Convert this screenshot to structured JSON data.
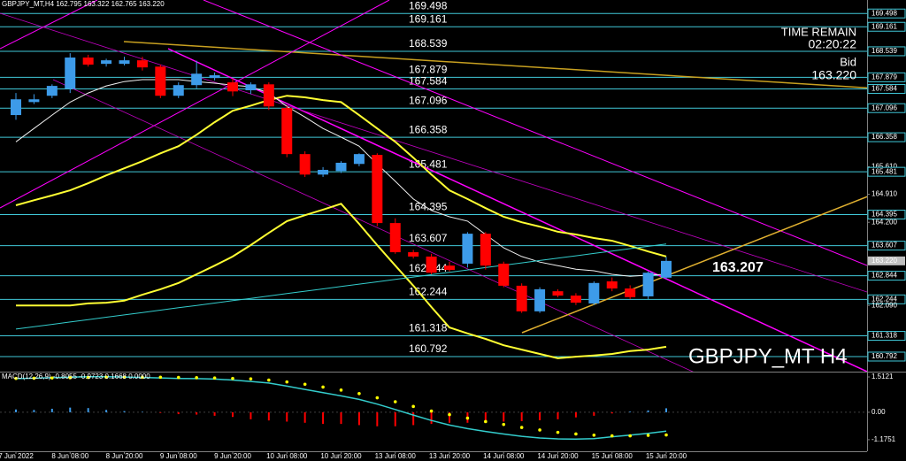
{
  "chart_data": [
    {
      "type": "candlestick",
      "title": "GBPJPY_MT,H4 162.795 163.322 162.765 163.220",
      "categories": [
        "7 Jun 2022",
        null,
        null,
        "8 Jun 08:00",
        null,
        null,
        "8 Jun 20:00",
        null,
        null,
        "9 Jun 08:00",
        null,
        null,
        "9 Jun 20:00",
        null,
        null,
        "10 Jun 08:00",
        null,
        null,
        "10 Jun 20:00",
        null,
        null,
        "13 Jun 08:00",
        null,
        null,
        "13 Jun 20:00",
        null,
        null,
        "14 Jun 08:00",
        null,
        null,
        "14 Jun 20:00",
        null,
        null,
        "15 Jun 08:00",
        null,
        null,
        "15 Jun 20:00"
      ],
      "ohlc": [
        [
          166.92,
          167.48,
          166.8,
          167.32
        ],
        [
          167.25,
          167.45,
          167.2,
          167.32
        ],
        [
          167.41,
          167.7,
          167.35,
          167.66
        ],
        [
          167.59,
          168.49,
          167.48,
          168.38
        ],
        [
          168.38,
          168.45,
          168.15,
          168.2
        ],
        [
          168.22,
          168.35,
          168.15,
          168.31
        ],
        [
          168.22,
          168.4,
          168.18,
          168.31
        ],
        [
          168.31,
          168.4,
          168.05,
          168.13
        ],
        [
          168.15,
          168.2,
          167.35,
          167.41
        ],
        [
          167.41,
          167.75,
          167.35,
          167.68
        ],
        [
          167.68,
          168.3,
          167.6,
          167.97
        ],
        [
          167.86,
          168.0,
          167.8,
          167.93
        ],
        [
          167.75,
          167.85,
          167.4,
          167.52
        ],
        [
          167.55,
          167.75,
          167.45,
          167.7
        ],
        [
          167.7,
          167.75,
          167.05,
          167.14
        ],
        [
          167.1,
          167.15,
          165.85,
          165.93
        ],
        [
          165.93,
          166.0,
          165.35,
          165.41
        ],
        [
          165.41,
          165.6,
          165.35,
          165.53
        ],
        [
          165.5,
          165.75,
          165.45,
          165.71
        ],
        [
          165.68,
          165.95,
          165.62,
          165.93
        ],
        [
          165.91,
          165.95,
          164.1,
          164.18
        ],
        [
          164.18,
          164.3,
          163.4,
          163.44
        ],
        [
          163.44,
          163.5,
          163.28,
          163.33
        ],
        [
          163.33,
          163.4,
          162.88,
          162.92
        ],
        [
          163.1,
          163.2,
          162.95,
          162.99
        ],
        [
          163.15,
          163.95,
          163.05,
          163.91
        ],
        [
          163.91,
          163.95,
          163.0,
          163.1
        ],
        [
          163.15,
          163.2,
          162.55,
          162.59
        ],
        [
          162.59,
          162.65,
          161.9,
          161.94
        ],
        [
          161.94,
          162.55,
          161.9,
          162.5
        ],
        [
          162.45,
          162.5,
          162.3,
          162.34
        ],
        [
          162.34,
          162.4,
          162.1,
          162.16
        ],
        [
          162.14,
          162.7,
          162.1,
          162.66
        ],
        [
          162.7,
          162.8,
          162.45,
          162.52
        ],
        [
          162.52,
          162.6,
          162.25,
          162.3
        ],
        [
          162.32,
          162.95,
          162.25,
          162.92
        ],
        [
          162.795,
          163.322,
          162.765,
          163.22
        ]
      ],
      "up_color": "#3d9be9",
      "down_color": "#ff0000",
      "lines": [
        {
          "color": "#ffff33",
          "values": [
            164.63,
            164.76,
            164.88,
            165.01,
            165.19,
            165.39,
            165.57,
            165.75,
            165.95,
            166.13,
            166.42,
            166.74,
            167.03,
            167.16,
            167.3,
            167.41,
            167.37,
            167.3,
            167.25,
            166.92,
            166.58,
            166.24,
            165.84,
            165.41,
            165.01,
            164.79,
            164.56,
            164.34,
            164.2,
            164.09,
            163.96,
            163.89,
            163.8,
            163.73,
            163.6,
            163.46,
            163.33
          ]
        },
        {
          "color": "#ffff33",
          "values": [
            162.09,
            162.09,
            162.09,
            162.09,
            162.14,
            162.16,
            162.21,
            162.36,
            162.5,
            162.66,
            162.88,
            163.1,
            163.33,
            163.62,
            163.93,
            164.23,
            164.38,
            164.52,
            164.67,
            164.16,
            163.62,
            163.1,
            162.59,
            162.05,
            161.53,
            161.38,
            161.24,
            161.08,
            160.97,
            160.86,
            160.75,
            160.79,
            160.82,
            160.86,
            160.93,
            160.97,
            161.04
          ]
        },
        {
          "color": "#f0f0f0",
          "values": [
            166.24,
            166.58,
            166.92,
            167.25,
            167.48,
            167.66,
            167.77,
            167.82,
            167.82,
            167.82,
            167.77,
            167.73,
            167.68,
            167.64,
            167.48,
            167.14,
            166.87,
            166.58,
            166.36,
            166.13,
            165.68,
            165.24,
            164.79,
            164.5,
            164.34,
            164.23,
            163.89,
            163.55,
            163.33,
            163.19,
            163.1,
            163.01,
            162.97,
            162.88,
            162.83,
            162.86,
            162.88
          ]
        },
        {
          "color": "#33cccc",
          "values": [
            161.49,
            161.55,
            161.61,
            161.67,
            161.73,
            161.79,
            161.85,
            161.91,
            161.97,
            162.03,
            162.09,
            162.15,
            162.21,
            162.27,
            162.33,
            162.39,
            162.45,
            162.51,
            162.57,
            162.63,
            162.69,
            162.75,
            162.81,
            162.87,
            162.93,
            162.99,
            163.05,
            163.11,
            163.17,
            163.23,
            163.29,
            163.35,
            163.41,
            163.47,
            163.53,
            163.59,
            163.65
          ]
        }
      ],
      "levels": [
        169.498,
        169.161,
        168.539,
        167.879,
        167.584,
        167.096,
        166.358,
        165.481,
        164.395,
        163.607,
        162.844,
        162.244,
        161.318,
        160.792
      ],
      "level_color": "#40c8d8",
      "ylim": [
        160.41,
        169.84
      ],
      "yticks": [
        169.498,
        169.161,
        168.539,
        167.879,
        167.584,
        167.096,
        166.358,
        {
          "value": 165.61,
          "label": "165.610"
        },
        165.481,
        {
          "value": 164.91,
          "label": "164.910"
        },
        164.395,
        {
          "value": 164.2,
          "label": "164.200"
        },
        163.607,
        {
          "value": 163.22,
          "label": "163.220"
        },
        162.844,
        162.244,
        {
          "value": 162.09,
          "label": "162.090"
        },
        161.318,
        160.792
      ],
      "annotations": {
        "time_remain": "TIME REMAIN",
        "countdown": "02:20:22",
        "bid_label": "Bid",
        "bid": "163.220",
        "price_label": "163.207",
        "watermark": "GBPJPY_MT H4"
      }
    },
    {
      "type": "macd",
      "title": "MACD(12,26,9) -0.8055 -0.9723 0.1668 0.0000",
      "values": [
        0.12,
        0.1,
        0.15,
        0.2,
        0.18,
        0.1,
        0.05,
        0.02,
        -0.03,
        -0.08,
        -0.1,
        -0.15,
        -0.2,
        -0.3,
        -0.35,
        -0.4,
        -0.45,
        -0.5,
        -0.5,
        -0.55,
        -0.6,
        -0.6,
        -0.55,
        -0.5,
        -0.45,
        -0.45,
        -0.42,
        -0.4,
        -0.38,
        -0.34,
        -0.3,
        -0.22,
        -0.15,
        -0.05,
        0.03,
        0.08,
        0.17
      ],
      "up_color": "#3d9be9",
      "down_color": "#ff0000",
      "lines": [
        {
          "color": "#33cccc",
          "style": "line",
          "values": [
            1.44,
            1.46,
            1.48,
            1.5,
            1.52,
            1.52,
            1.51,
            1.49,
            1.47,
            1.45,
            1.44,
            1.42,
            1.38,
            1.32,
            1.25,
            1.12,
            0.98,
            0.84,
            0.7,
            0.55,
            0.35,
            0.12,
            -0.12,
            -0.35,
            -0.55,
            -0.7,
            -0.82,
            -0.93,
            -1.03,
            -1.1,
            -1.14,
            -1.15,
            -1.13,
            -1.05,
            -0.98,
            -0.9,
            -0.81
          ]
        },
        {
          "color": "#ffff00",
          "style": "dots",
          "values": [
            1.45,
            1.46,
            1.47,
            1.48,
            1.49,
            1.5,
            1.5,
            1.5,
            1.5,
            1.49,
            1.48,
            1.47,
            1.45,
            1.43,
            1.38,
            1.3,
            1.2,
            1.08,
            0.95,
            0.8,
            0.62,
            0.45,
            0.25,
            0.05,
            -0.1,
            -0.25,
            -0.4,
            -0.52,
            -0.65,
            -0.76,
            -0.86,
            -0.93,
            -0.98,
            -1.01,
            -1.01,
            -0.99,
            -0.97
          ]
        }
      ],
      "ylim": [
        -1.67,
        1.74
      ],
      "yticks": [
        1.5121,
        {
          "value": 0,
          "label": "0.00"
        },
        -1.1751
      ]
    }
  ]
}
